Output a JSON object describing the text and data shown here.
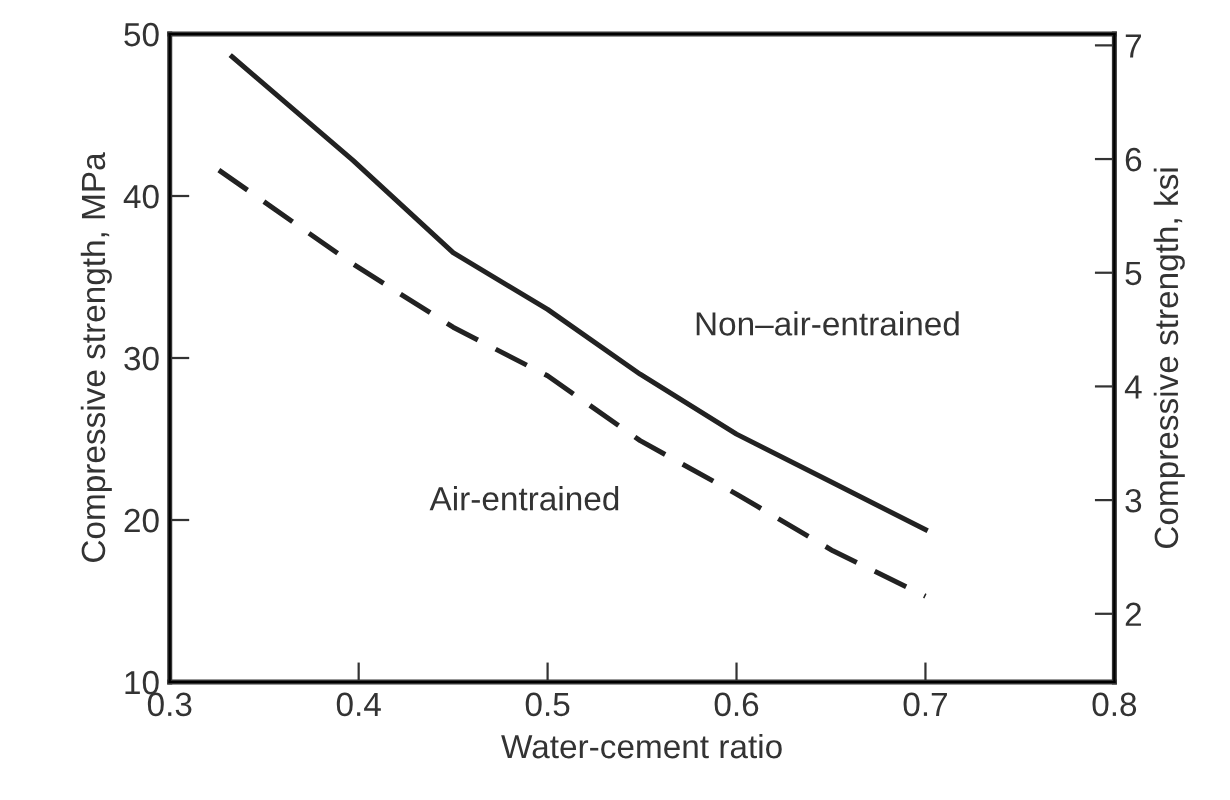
{
  "chart_data": {
    "type": "line",
    "xlabel": "Water-cement ratio",
    "ylabel": "Compressive strength, MPa",
    "y2label": "Compressive strength, ksi",
    "xlim": [
      0.3,
      0.8
    ],
    "xticks": [
      0.3,
      0.4,
      0.5,
      0.6,
      0.7,
      0.8
    ],
    "ylim": [
      10,
      50
    ],
    "yticks": [
      10,
      20,
      30,
      40,
      50
    ],
    "y2lim": [
      1.4,
      7.1
    ],
    "y2ticks": [
      2,
      3,
      4,
      5,
      6,
      7
    ],
    "grid": false,
    "legend": false,
    "series": [
      {
        "name": "Non–air-entrained",
        "color": "#222222",
        "line_style": "solid",
        "x": [
          0.333,
          0.397,
          0.45,
          0.5,
          0.549,
          0.6,
          0.651,
          0.7
        ],
        "values": [
          48.6,
          42.2,
          36.5,
          33.0,
          29.0,
          25.3,
          22.3,
          19.4
        ]
      },
      {
        "name": "Air-entrained",
        "color": "#222222",
        "line_style": "dashed",
        "x": [
          0.326,
          0.397,
          0.45,
          0.5,
          0.549,
          0.6,
          0.651,
          0.7
        ],
        "values": [
          41.6,
          35.8,
          31.9,
          28.9,
          24.9,
          21.6,
          18.1,
          15.3
        ]
      }
    ]
  }
}
